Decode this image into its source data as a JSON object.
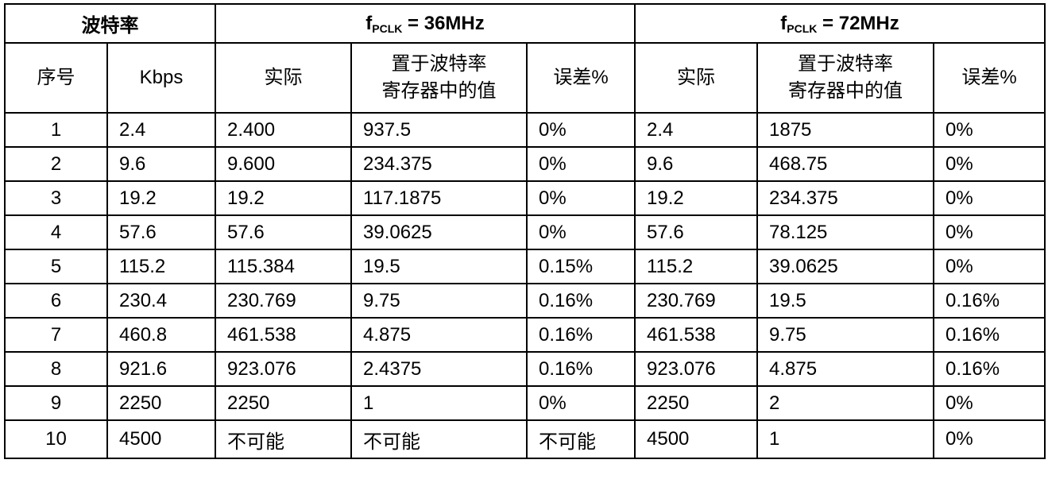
{
  "header": {
    "baud_group": "波特率",
    "group_36": {
      "prefix": "f",
      "sub": "PCLK",
      "suffix": " = 36MHz"
    },
    "group_72": {
      "prefix": "f",
      "sub": "PCLK",
      "suffix": " = 72MHz"
    }
  },
  "columns": {
    "index": "序号",
    "kbps": "Kbps",
    "actual": "实际",
    "reg_line1": "置于波特率",
    "reg_line2": "寄存器中的值",
    "error": "误差%"
  },
  "rows": [
    [
      "1",
      "2.4",
      "2.400",
      "937.5",
      "0%",
      "2.4",
      "1875",
      "0%"
    ],
    [
      "2",
      "9.6",
      "9.600",
      "234.375",
      "0%",
      "9.6",
      "468.75",
      "0%"
    ],
    [
      "3",
      "19.2",
      "19.2",
      "117.1875",
      "0%",
      "19.2",
      "234.375",
      "0%"
    ],
    [
      "4",
      "57.6",
      "57.6",
      "39.0625",
      "0%",
      "57.6",
      "78.125",
      "0%"
    ],
    [
      "5",
      "115.2",
      "115.384",
      "19.5",
      "0.15%",
      "115.2",
      "39.0625",
      "0%"
    ],
    [
      "6",
      "230.4",
      "230.769",
      "9.75",
      "0.16%",
      "230.769",
      "19.5",
      "0.16%"
    ],
    [
      "7",
      "460.8",
      "461.538",
      "4.875",
      "0.16%",
      "461.538",
      "9.75",
      "0.16%"
    ],
    [
      "8",
      "921.6",
      "923.076",
      "2.4375",
      "0.16%",
      "923.076",
      "4.875",
      "0.16%"
    ],
    [
      "9",
      "2250",
      "2250",
      "1",
      "0%",
      "2250",
      "2",
      "0%"
    ],
    [
      "10",
      "4500",
      "不可能",
      "不可能",
      "不可能",
      "4500",
      "1",
      "0%"
    ]
  ]
}
